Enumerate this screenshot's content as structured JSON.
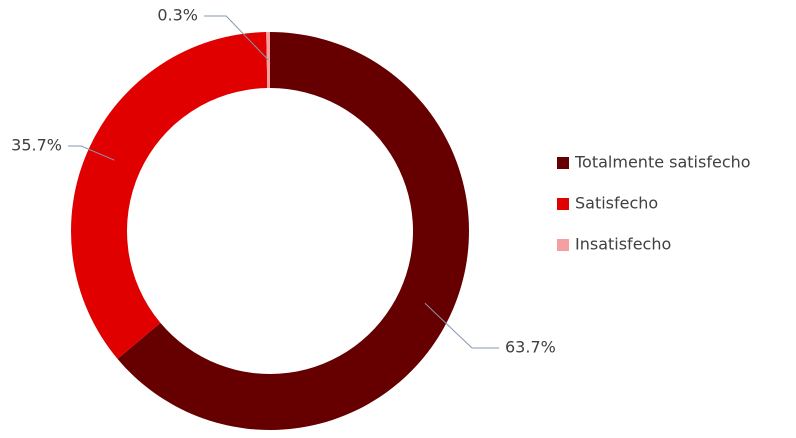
{
  "chart_data": {
    "type": "donut",
    "categories": [
      "Totalmente satisfecho",
      "Satisfecho",
      "Insatisfecho"
    ],
    "values": [
      63.7,
      35.7,
      0.3
    ],
    "value_labels": [
      "63.7%",
      "35.7%",
      "0.3%"
    ],
    "colors": [
      "#660000",
      "#e00000",
      "#f4a0a0"
    ],
    "legend": "right"
  }
}
